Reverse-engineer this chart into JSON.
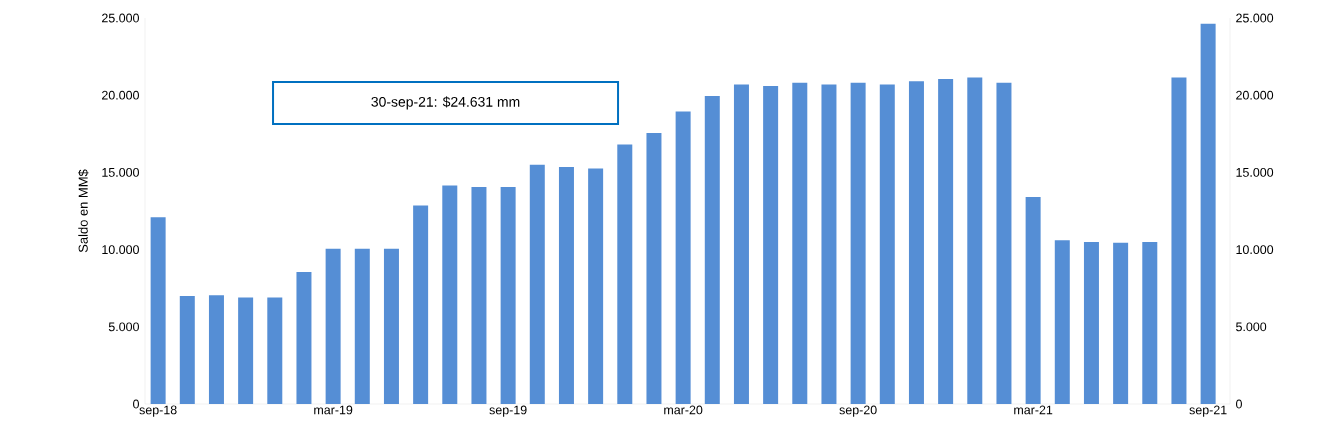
{
  "chart_data": {
    "type": "bar",
    "ylabel": "Saldo en MM$",
    "categories": [
      "sep-18",
      null,
      null,
      null,
      null,
      null,
      "mar-19",
      null,
      null,
      null,
      null,
      null,
      "sep-19",
      null,
      null,
      null,
      null,
      null,
      "mar-20",
      null,
      null,
      null,
      null,
      null,
      "sep-20",
      null,
      null,
      null,
      null,
      null,
      "mar-21",
      null,
      null,
      null,
      null,
      null,
      "sep-21"
    ],
    "values": [
      12100,
      7000,
      7050,
      6900,
      6900,
      8550,
      10050,
      10050,
      10050,
      12850,
      14150,
      14050,
      14050,
      15500,
      15350,
      15250,
      16800,
      17550,
      18950,
      19950,
      20700,
      20600,
      20800,
      20700,
      20800,
      20700,
      20900,
      21050,
      21150,
      20800,
      13400,
      10600,
      10500,
      10450,
      10500,
      21150,
      24631
    ],
    "color": "#558ed5",
    "ylim": [
      0,
      25000
    ],
    "yticks": [
      0,
      {
        "value": 5000,
        "label": "5.000"
      },
      {
        "value": 10000,
        "label": "10.000"
      },
      {
        "value": 15000,
        "label": "15.000"
      },
      {
        "value": 20000,
        "label": "20.000"
      },
      {
        "value": 25000,
        "label": "25.000"
      }
    ],
    "y2lim": [
      0,
      25000
    ],
    "y2ticks": [
      0,
      {
        "value": 5000,
        "label": "5.000"
      },
      {
        "value": 10000,
        "label": "10.000"
      },
      {
        "value": 15000,
        "label": "15.000"
      },
      {
        "value": 20000,
        "label": "20.000"
      },
      {
        "value": 25000,
        "label": "25.000"
      }
    ],
    "annotations": [
      "30-sep-21: $24.631 mm"
    ]
  }
}
